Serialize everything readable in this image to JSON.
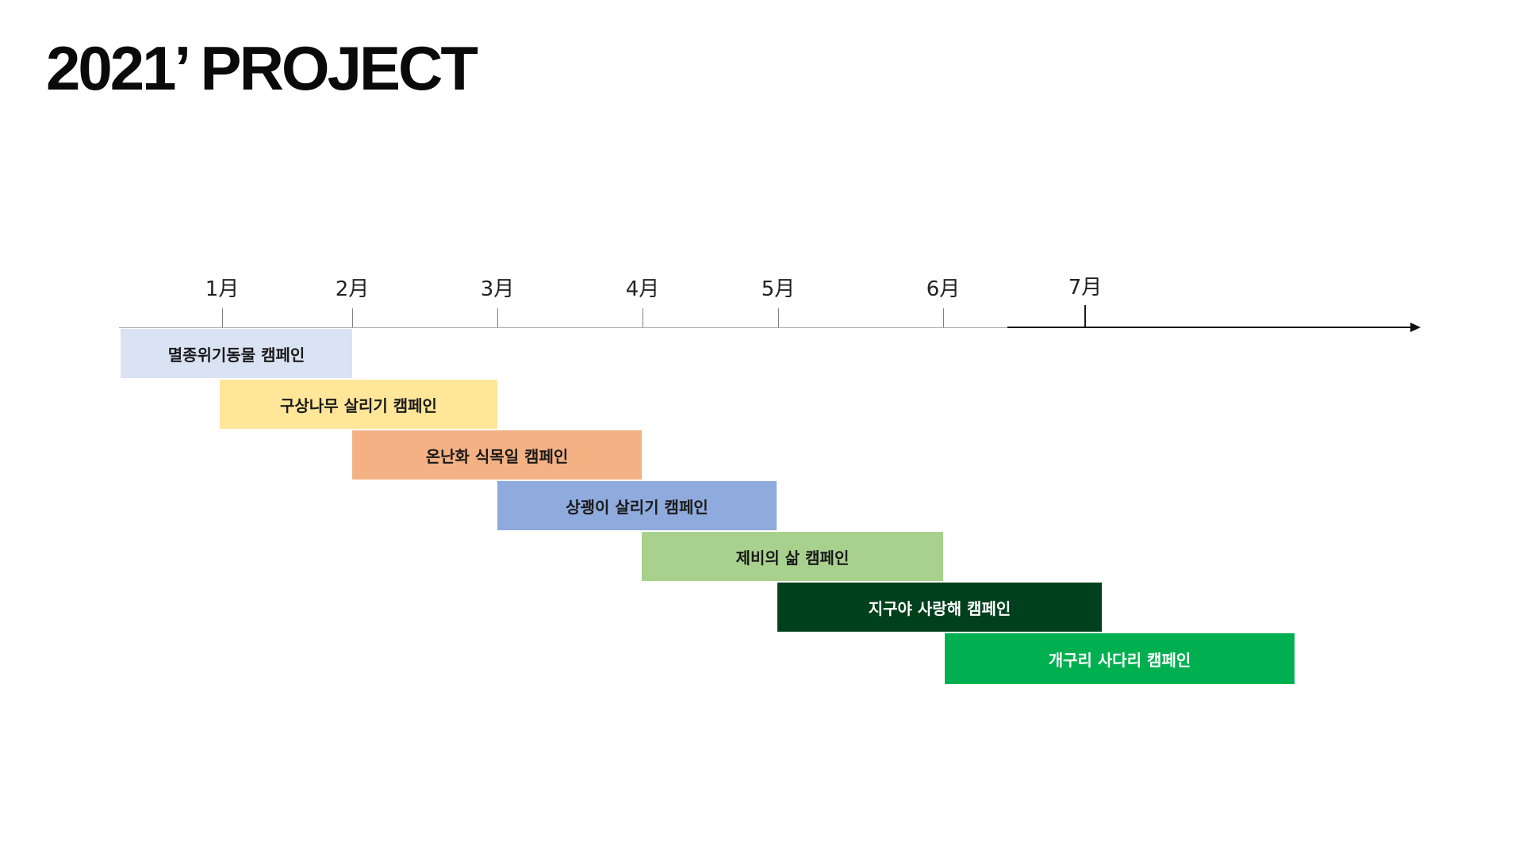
{
  "title": "2021’ PROJECT",
  "months": [
    "1月",
    "2月",
    "3月",
    "4月",
    "5月",
    "6月",
    "7月"
  ],
  "campaigns": [
    {
      "name": "멸종위기동물 캠페인",
      "color": "#dae3f3",
      "text_color": "#1a1a1a"
    },
    {
      "name": "구상나무 살리기 캠페인",
      "color": "#ffe699",
      "text_color": "#1a1a1a"
    },
    {
      "name": "온난화 식목일 캠페인",
      "color": "#f4b183",
      "text_color": "#1a1a1a"
    },
    {
      "name": "상괭이 살리기 캠페인",
      "color": "#8faadc",
      "text_color": "#1a1a1a"
    },
    {
      "name": "제비의 삶 캠페인",
      "color": "#a9d18e",
      "text_color": "#1a1a1a"
    },
    {
      "name": "지구야 사랑해 캠페인",
      "color": "#00401c",
      "text_color": "#ffffff"
    },
    {
      "name": "개구리 사다리 캠페인",
      "color": "#00b050",
      "text_color": "#ffffff"
    }
  ]
}
